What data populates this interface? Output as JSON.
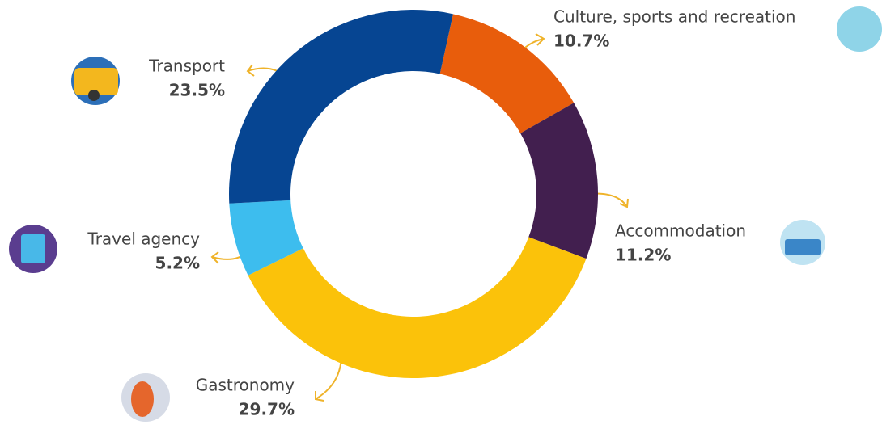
{
  "chart_data": {
    "type": "donut",
    "categories": [
      "Culture, sports and recreation",
      "Accommodation",
      "Gastronomy",
      "Travel agency",
      "Transport"
    ],
    "values": [
      10.7,
      11.2,
      29.7,
      5.2,
      23.5
    ],
    "value_labels": [
      "10.7%",
      "11.2%",
      "29.7%",
      "5.2%",
      "23.5%"
    ],
    "colors": [
      "#e85d0c",
      "#421f4f",
      "#fbc20a",
      "#3dbdee",
      "#064592"
    ]
  }
}
